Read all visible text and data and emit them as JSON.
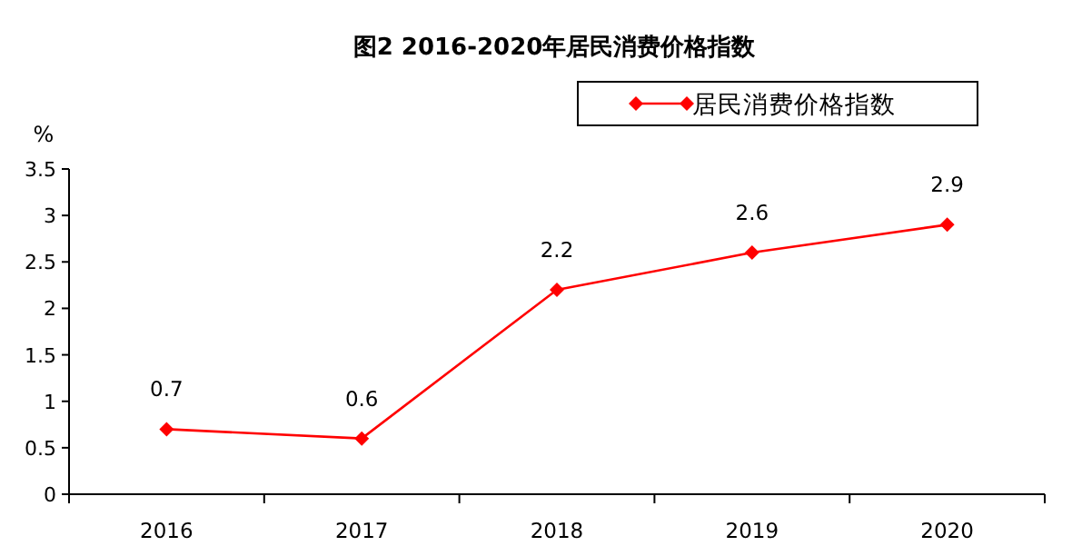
{
  "chart_data": {
    "type": "line",
    "title": "图2  2016-2020年居民消费价格指数",
    "ylabel": "%",
    "categories": [
      "2016",
      "2017",
      "2018",
      "2019",
      "2020"
    ],
    "series": [
      {
        "name": "居民消费价格指数",
        "color": "#ff0000",
        "values": [
          0.7,
          0.6,
          2.2,
          2.6,
          2.9
        ]
      }
    ],
    "ylim": [
      0,
      3.5
    ],
    "yticks": [
      0,
      0.5,
      1,
      1.5,
      2,
      2.5,
      3,
      3.5
    ],
    "data_labels": true,
    "legend": "top right",
    "marker": "diamond",
    "line_style": "solid"
  }
}
